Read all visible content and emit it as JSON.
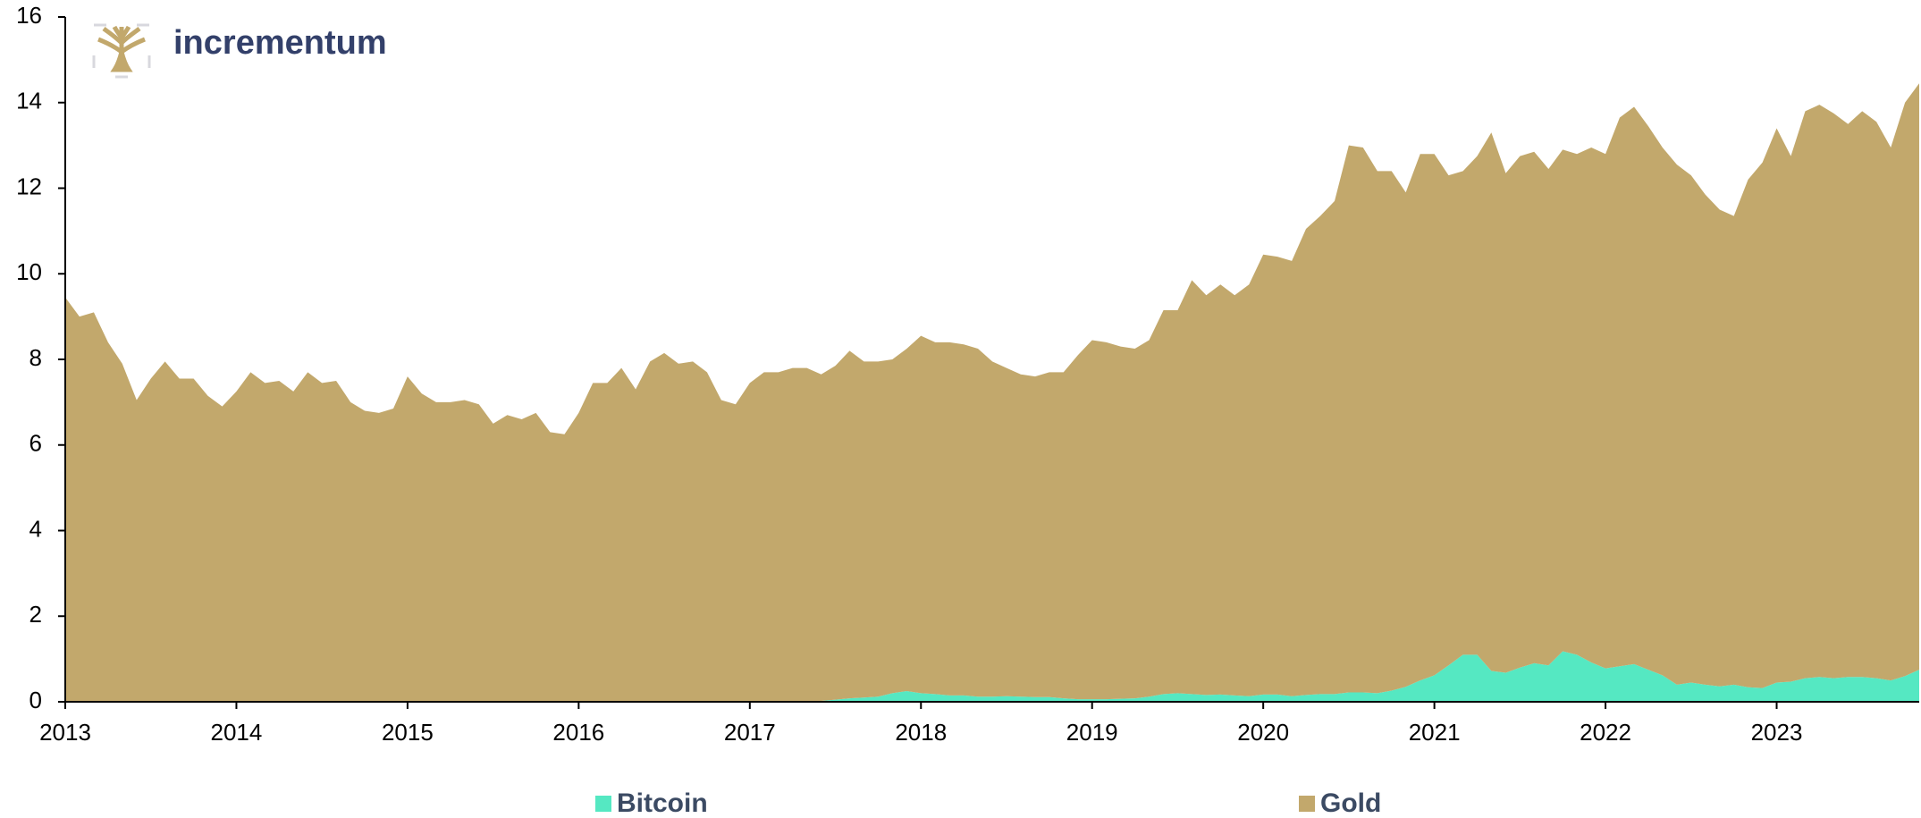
{
  "logo_text": "incrementum",
  "chart_data": {
    "type": "stacked-area",
    "x": [
      2013,
      2013.083,
      2013.167,
      2013.25,
      2013.333,
      2013.417,
      2013.5,
      2013.583,
      2013.667,
      2013.75,
      2013.833,
      2013.917,
      2014,
      2014.083,
      2014.167,
      2014.25,
      2014.333,
      2014.417,
      2014.5,
      2014.583,
      2014.667,
      2014.75,
      2014.833,
      2014.917,
      2015,
      2015.083,
      2015.167,
      2015.25,
      2015.333,
      2015.417,
      2015.5,
      2015.583,
      2015.667,
      2015.75,
      2015.833,
      2015.917,
      2016,
      2016.083,
      2016.167,
      2016.25,
      2016.333,
      2016.417,
      2016.5,
      2016.583,
      2016.667,
      2016.75,
      2016.833,
      2016.917,
      2017,
      2017.083,
      2017.167,
      2017.25,
      2017.333,
      2017.417,
      2017.5,
      2017.583,
      2017.667,
      2017.75,
      2017.833,
      2017.917,
      2018,
      2018.083,
      2018.167,
      2018.25,
      2018.333,
      2018.417,
      2018.5,
      2018.583,
      2018.667,
      2018.75,
      2018.833,
      2018.917,
      2019,
      2019.083,
      2019.167,
      2019.25,
      2019.333,
      2019.417,
      2019.5,
      2019.583,
      2019.667,
      2019.75,
      2019.833,
      2019.917,
      2020,
      2020.083,
      2020.167,
      2020.25,
      2020.333,
      2020.417,
      2020.5,
      2020.583,
      2020.667,
      2020.75,
      2020.833,
      2020.917,
      2021,
      2021.083,
      2021.167,
      2021.25,
      2021.333,
      2021.417,
      2021.5,
      2021.583,
      2021.667,
      2021.75,
      2021.833,
      2021.917,
      2022,
      2022.083,
      2022.167,
      2022.25,
      2022.333,
      2022.417,
      2022.5,
      2022.583,
      2022.667,
      2022.75,
      2022.833,
      2022.917,
      2023,
      2023.083,
      2023.167,
      2023.25,
      2023.333,
      2023.417,
      2023.5,
      2023.583,
      2023.667,
      2023.75,
      2023.833
    ],
    "series": [
      {
        "name": "Bitcoin",
        "color": "#55e8c2",
        "values": [
          0,
          0,
          0,
          0,
          0,
          0,
          0,
          0,
          0,
          0,
          0,
          0,
          0,
          0,
          0,
          0,
          0,
          0,
          0,
          0,
          0,
          0,
          0,
          0,
          0,
          0,
          0,
          0,
          0,
          0,
          0,
          0,
          0,
          0,
          0,
          0,
          0,
          0,
          0,
          0,
          0,
          0,
          0,
          0,
          0,
          0,
          0,
          0,
          0,
          0,
          0,
          0,
          0,
          0.02,
          0.05,
          0.08,
          0.1,
          0.12,
          0.2,
          0.25,
          0.2,
          0.18,
          0.15,
          0.15,
          0.12,
          0.12,
          0.13,
          0.12,
          0.11,
          0.11,
          0.08,
          0.06,
          0.06,
          0.06,
          0.07,
          0.08,
          0.12,
          0.18,
          0.2,
          0.18,
          0.16,
          0.17,
          0.15,
          0.13,
          0.17,
          0.17,
          0.13,
          0.16,
          0.18,
          0.18,
          0.22,
          0.22,
          0.2,
          0.26,
          0.35,
          0.5,
          0.62,
          0.85,
          1.1,
          1.1,
          0.72,
          0.68,
          0.8,
          0.9,
          0.85,
          1.18,
          1.1,
          0.92,
          0.78,
          0.83,
          0.88,
          0.75,
          0.62,
          0.4,
          0.45,
          0.4,
          0.36,
          0.4,
          0.34,
          0.32,
          0.45,
          0.47,
          0.55,
          0.58,
          0.55,
          0.58,
          0.58,
          0.55,
          0.5,
          0.6,
          0.75
        ]
      },
      {
        "name": "Gold",
        "color": "#c2a86c",
        "values": [
          9.45,
          9.0,
          9.1,
          8.4,
          7.9,
          7.05,
          7.55,
          7.95,
          7.55,
          7.55,
          7.15,
          6.9,
          7.25,
          7.7,
          7.45,
          7.5,
          7.25,
          7.7,
          7.45,
          7.5,
          7.0,
          6.8,
          6.75,
          6.85,
          7.6,
          7.2,
          7.0,
          7.0,
          7.05,
          6.95,
          6.5,
          6.7,
          6.6,
          6.75,
          6.3,
          6.25,
          6.75,
          7.45,
          7.45,
          7.8,
          7.3,
          7.95,
          8.15,
          7.9,
          7.95,
          7.7,
          7.05,
          6.95,
          7.45,
          7.7,
          7.7,
          7.8,
          7.8,
          7.63,
          7.8,
          8.12,
          7.85,
          7.83,
          7.8,
          8.0,
          8.35,
          8.22,
          8.25,
          8.2,
          8.13,
          7.83,
          7.67,
          7.53,
          7.49,
          7.59,
          7.62,
          8.04,
          8.39,
          8.34,
          8.23,
          8.17,
          8.33,
          8.97,
          8.95,
          9.67,
          9.34,
          9.58,
          9.35,
          9.62,
          10.28,
          10.23,
          10.17,
          10.89,
          11.17,
          11.52,
          12.78,
          12.73,
          12.2,
          12.14,
          11.55,
          12.3,
          12.18,
          11.45,
          11.3,
          11.65,
          12.58,
          11.67,
          11.95,
          11.95,
          11.6,
          11.72,
          11.7,
          12.03,
          12.02,
          12.82,
          13.02,
          12.7,
          12.33,
          12.15,
          11.85,
          11.45,
          11.14,
          10.95,
          11.86,
          12.28,
          12.95,
          12.28,
          13.25,
          13.37,
          13.2,
          12.92,
          13.22,
          13.0,
          12.45,
          13.4,
          13.7
        ]
      }
    ],
    "xlim": [
      2013,
      2023.833
    ],
    "xticks": [
      2013,
      2014,
      2015,
      2016,
      2017,
      2018,
      2019,
      2020,
      2021,
      2022,
      2023
    ],
    "ylim": [
      0,
      16
    ],
    "yticks": [
      0,
      2,
      4,
      6,
      8,
      10,
      12,
      14,
      16
    ],
    "grid": false,
    "legend": "bottom"
  }
}
